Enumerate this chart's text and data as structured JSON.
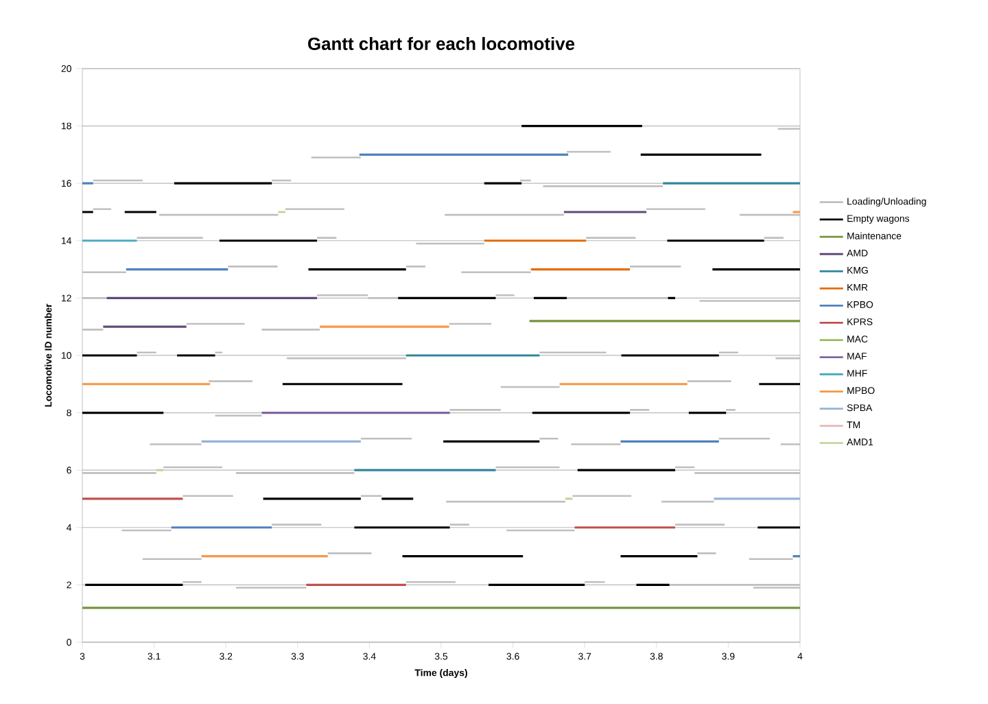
{
  "chart_data": {
    "type": "line",
    "title": "Gantt chart for each locomotive",
    "xlabel": "Time (days)",
    "ylabel": "Locomotive ID number",
    "xlim": [
      3,
      4
    ],
    "ylim": [
      0,
      20
    ],
    "xticks": [
      3,
      3.1,
      3.2,
      3.3,
      3.4,
      3.5,
      3.6,
      3.7,
      3.8,
      3.9,
      4
    ],
    "yticks": [
      0,
      2,
      4,
      6,
      8,
      10,
      12,
      14,
      16,
      18,
      20
    ],
    "grid": "y",
    "legend": "right",
    "marker": "none",
    "line_style": "solid",
    "series": [
      {
        "name": "Loading/Unloading",
        "color": "#bfbfbf",
        "x": [
          3.675,
          3.736,
          null,
          3.319,
          3.388,
          null,
          3.969,
          4.0,
          null,
          3.015,
          3.084,
          null,
          3.264,
          3.291,
          null,
          3.61,
          3.625,
          null,
          3.642,
          3.809,
          null,
          3.015,
          3.04,
          null,
          3.283,
          3.365,
          null,
          3.786,
          3.868,
          null,
          3.107,
          3.273,
          null,
          3.505,
          3.671,
          null,
          3.916,
          4.0,
          null,
          3.076,
          3.168,
          null,
          3.327,
          3.354,
          null,
          3.702,
          3.771,
          null,
          3.95,
          3.977,
          null,
          3.465,
          3.56,
          null,
          3.203,
          3.272,
          null,
          3.451,
          3.478,
          null,
          3.763,
          3.834,
          null,
          3.0,
          3.061,
          null,
          3.528,
          3.625,
          null,
          3.327,
          3.398,
          null,
          3.576,
          3.602,
          null,
          3.0,
          3.034,
          null,
          3.398,
          3.44,
          null,
          3.675,
          3.816,
          null,
          3.86,
          4.0,
          null,
          3.145,
          3.226,
          null,
          3.511,
          3.57,
          null,
          3.0,
          3.029,
          null,
          3.25,
          3.331,
          null,
          3.076,
          3.103,
          null,
          3.185,
          3.195,
          null,
          3.637,
          3.73,
          null,
          3.887,
          3.914,
          null,
          3.285,
          3.451,
          null,
          3.966,
          4.0,
          null,
          3.176,
          3.237,
          null,
          3.843,
          3.904,
          null,
          3.583,
          3.665,
          null,
          3.512,
          3.583,
          null,
          3.763,
          3.79,
          null,
          3.897,
          3.91,
          null,
          3.185,
          3.25,
          null,
          3.388,
          3.459,
          null,
          3.637,
          3.663,
          null,
          3.887,
          3.958,
          null,
          3.094,
          3.166,
          null,
          3.681,
          3.75,
          null,
          3.973,
          4.0,
          null,
          3.113,
          3.195,
          null,
          3.576,
          3.665,
          null,
          3.826,
          3.853,
          null,
          3.0,
          3.103,
          null,
          3.214,
          3.379,
          null,
          3.853,
          4.0,
          null,
          3.14,
          3.21,
          null,
          3.388,
          3.417,
          null,
          3.683,
          3.765,
          null,
          3.507,
          3.673,
          null,
          3.807,
          3.88,
          null,
          3.264,
          3.333,
          null,
          3.512,
          3.539,
          null,
          3.826,
          3.895,
          null,
          3.055,
          3.124,
          null,
          3.591,
          3.686,
          null,
          3.342,
          3.403,
          null,
          3.857,
          3.883,
          null,
          3.084,
          3.166,
          null,
          3.929,
          3.99,
          null,
          3.14,
          3.166,
          null,
          3.451,
          3.52,
          null,
          3.7,
          3.728,
          null,
          3.818,
          4.0,
          null,
          3.214,
          3.312,
          null,
          3.935,
          4.0,
          null
        ],
        "values": [
          17.1,
          17.1,
          null,
          16.9,
          16.9,
          null,
          17.9,
          17.9,
          null,
          16.1,
          16.1,
          null,
          16.1,
          16.1,
          null,
          16.1,
          16.1,
          null,
          15.9,
          15.9,
          null,
          15.1,
          15.1,
          null,
          15.1,
          15.1,
          null,
          15.1,
          15.1,
          null,
          14.9,
          14.9,
          null,
          14.9,
          14.9,
          null,
          14.9,
          14.9,
          null,
          14.1,
          14.1,
          null,
          14.1,
          14.1,
          null,
          14.1,
          14.1,
          null,
          14.1,
          14.1,
          null,
          13.9,
          13.9,
          null,
          13.1,
          13.1,
          null,
          13.1,
          13.1,
          null,
          13.1,
          13.1,
          null,
          12.9,
          12.9,
          null,
          12.9,
          12.9,
          null,
          12.1,
          12.1,
          null,
          12.1,
          12.1,
          null,
          12,
          12,
          null,
          12,
          12,
          null,
          12,
          12,
          null,
          11.9,
          11.9,
          null,
          11.1,
          11.1,
          null,
          11.1,
          11.1,
          null,
          10.9,
          10.9,
          null,
          10.9,
          10.9,
          null,
          10.1,
          10.1,
          null,
          10.1,
          10.1,
          null,
          10.1,
          10.1,
          null,
          10.1,
          10.1,
          null,
          9.9,
          9.9,
          null,
          9.9,
          9.9,
          null,
          9.1,
          9.1,
          null,
          9.1,
          9.1,
          null,
          8.9,
          8.9,
          null,
          8.1,
          8.1,
          null,
          8.1,
          8.1,
          null,
          8.1,
          8.1,
          null,
          7.9,
          7.9,
          null,
          7.1,
          7.1,
          null,
          7.1,
          7.1,
          null,
          7.1,
          7.1,
          null,
          6.9,
          6.9,
          null,
          6.9,
          6.9,
          null,
          6.9,
          6.9,
          null,
          6.1,
          6.1,
          null,
          6.1,
          6.1,
          null,
          6.1,
          6.1,
          null,
          5.9,
          5.9,
          null,
          5.9,
          5.9,
          null,
          5.9,
          5.9,
          null,
          5.1,
          5.1,
          null,
          5.1,
          5.1,
          null,
          5.1,
          5.1,
          null,
          4.9,
          4.9,
          null,
          4.9,
          4.9,
          null,
          4.1,
          4.1,
          null,
          4.1,
          4.1,
          null,
          4.1,
          4.1,
          null,
          3.9,
          3.9,
          null,
          3.9,
          3.9,
          null,
          3.1,
          3.1,
          null,
          3.1,
          3.1,
          null,
          2.9,
          2.9,
          null,
          2.9,
          2.9,
          null,
          2.1,
          2.1,
          null,
          2.1,
          2.1,
          null,
          2.1,
          2.1,
          null,
          2,
          2,
          null,
          1.9,
          1.9,
          null,
          1.9,
          1.9,
          null
        ]
      },
      {
        "name": "Empty wagons",
        "color": "#000000",
        "x": [
          3.612,
          3.78,
          null,
          3.778,
          3.946,
          null,
          3.128,
          3.264,
          null,
          3.56,
          3.612,
          null,
          3.0,
          3.015,
          null,
          3.059,
          3.103,
          null,
          3.191,
          3.327,
          null,
          3.815,
          3.95,
          null,
          3.315,
          3.451,
          null,
          3.878,
          4.0,
          null,
          3.44,
          3.576,
          null,
          3.629,
          3.675,
          null,
          3.816,
          3.826,
          null,
          3.0,
          3.076,
          null,
          3.132,
          3.185,
          null,
          3.751,
          3.887,
          null,
          3.279,
          3.446,
          null,
          3.943,
          4.0,
          null,
          3.0,
          3.113,
          null,
          3.627,
          3.763,
          null,
          3.845,
          3.897,
          null,
          3.503,
          3.637,
          null,
          3.69,
          3.826,
          null,
          3.252,
          3.388,
          null,
          3.417,
          3.461,
          null,
          3.379,
          3.512,
          null,
          3.941,
          4.0,
          null,
          3.446,
          3.614,
          null,
          3.75,
          3.857,
          null,
          3.004,
          3.14,
          null,
          3.566,
          3.7,
          null,
          3.772,
          3.818,
          null
        ],
        "values": [
          18,
          18,
          null,
          17,
          17,
          null,
          16,
          16,
          null,
          16,
          16,
          null,
          15,
          15,
          null,
          15,
          15,
          null,
          14,
          14,
          null,
          14,
          14,
          null,
          13,
          13,
          null,
          13,
          13,
          null,
          12,
          12,
          null,
          12,
          12,
          null,
          12,
          12,
          null,
          10,
          10,
          null,
          10,
          10,
          null,
          10,
          10,
          null,
          9,
          9,
          null,
          9,
          9,
          null,
          8,
          8,
          null,
          8,
          8,
          null,
          8,
          8,
          null,
          7,
          7,
          null,
          6,
          6,
          null,
          5,
          5,
          null,
          5,
          5,
          null,
          4,
          4,
          null,
          4,
          4,
          null,
          3,
          3,
          null,
          3,
          3,
          null,
          2,
          2,
          null,
          2,
          2,
          null,
          2,
          2,
          null
        ]
      },
      {
        "name": "Maintenance",
        "color": "#77933c",
        "x": [
          3.0,
          4.0,
          null,
          3.623,
          4.0,
          null
        ],
        "values": [
          1.2,
          1.2,
          null,
          11.2,
          11.2,
          null
        ]
      },
      {
        "name": "AMD",
        "color": "#604a7b",
        "x": [
          3.671,
          3.786,
          null,
          3.034,
          3.327,
          null,
          3.029,
          3.145,
          null
        ],
        "values": [
          15,
          15,
          null,
          12,
          12,
          null,
          11,
          11,
          null
        ]
      },
      {
        "name": "KMG",
        "color": "#31859c",
        "x": [
          3.809,
          4.0,
          null,
          3.451,
          3.637,
          null,
          3.379,
          3.576,
          null
        ],
        "values": [
          16,
          16,
          null,
          10,
          10,
          null,
          6,
          6,
          null
        ]
      },
      {
        "name": "KMR",
        "color": "#e46c0a",
        "x": [
          3.56,
          3.702,
          null,
          3.625,
          3.763,
          null
        ],
        "values": [
          14,
          14,
          null,
          13,
          13,
          null
        ]
      },
      {
        "name": "KPBO",
        "color": "#4f81bd",
        "x": [
          3.386,
          3.677,
          null,
          3.0,
          3.015,
          null,
          3.061,
          3.203,
          null,
          3.75,
          3.887,
          null,
          3.124,
          3.264,
          null,
          3.99,
          4.0,
          null
        ],
        "values": [
          17,
          17,
          null,
          16,
          16,
          null,
          13,
          13,
          null,
          7,
          7,
          null,
          4,
          4,
          null,
          3,
          3,
          null
        ]
      },
      {
        "name": "KPRS",
        "color": "#c0504d",
        "x": [
          3.0,
          3.14,
          null,
          3.686,
          3.826,
          null,
          3.312,
          3.451,
          null
        ],
        "values": [
          5,
          5,
          null,
          4,
          4,
          null,
          2,
          2,
          null
        ]
      },
      {
        "name": "MAC",
        "color": "#9bbb59"
      },
      {
        "name": "MAF",
        "color": "#8064a2",
        "x": [
          3.25,
          3.512
        ],
        "values": [
          8,
          8
        ]
      },
      {
        "name": "MHF",
        "color": "#4bacc6",
        "x": [
          3.0,
          3.076
        ],
        "values": [
          14,
          14
        ]
      },
      {
        "name": "MPBO",
        "color": "#f79646",
        "x": [
          3.99,
          4.0,
          null,
          3.331,
          3.511,
          null,
          3.0,
          3.178,
          null,
          3.665,
          3.843,
          null,
          3.166,
          3.342,
          null
        ],
        "values": [
          15,
          15,
          null,
          11,
          11,
          null,
          9,
          9,
          null,
          9,
          9,
          null,
          3,
          3,
          null
        ]
      },
      {
        "name": "SPBA",
        "color": "#95b3d7",
        "x": [
          3.166,
          3.388,
          null,
          3.88,
          4.0,
          null
        ],
        "values": [
          7,
          7,
          null,
          5,
          5,
          null
        ]
      },
      {
        "name": "TM",
        "color": "#e6b9b8"
      },
      {
        "name": "AMD1",
        "color": "#c3d69b",
        "x": [
          3.273,
          3.283,
          null,
          3.103,
          3.113,
          null,
          3.673,
          3.683,
          null
        ],
        "values": [
          15,
          15,
          null,
          6,
          6,
          null,
          5,
          5,
          null
        ]
      }
    ]
  }
}
